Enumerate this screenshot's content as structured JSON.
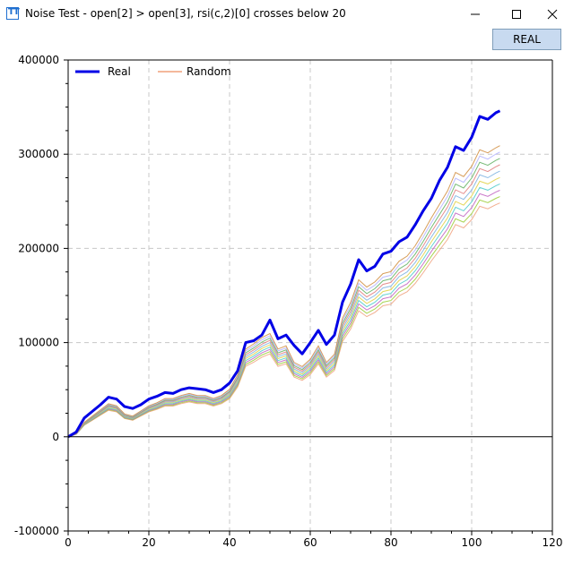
{
  "window": {
    "title": "Noise Test - open[2] > open[3], rsi(c,2)[0] crosses below 20",
    "icon_letters": "TT",
    "icon": "app-icon"
  },
  "toolbar": {
    "real_label": "REAL"
  },
  "chart_data": {
    "type": "line",
    "xlim": [
      0,
      120
    ],
    "ylim": [
      -100000,
      400000
    ],
    "x_ticks": [
      "0",
      "20",
      "40",
      "60",
      "80",
      "100",
      "120"
    ],
    "y_ticks": [
      "400000",
      "300000",
      "200000",
      "100000",
      "0",
      "-100000"
    ],
    "grid": true,
    "legend_position": "top-left",
    "legend": [
      "Real",
      "Random"
    ],
    "colors": {
      "real": "#0000e6",
      "random": "#f0a07c"
    },
    "series": [
      {
        "name": "Real",
        "x": [
          0,
          2,
          4,
          6,
          8,
          10,
          12,
          14,
          16,
          18,
          20,
          22,
          24,
          26,
          28,
          30,
          32,
          34,
          36,
          38,
          40,
          42,
          44,
          46,
          48,
          50,
          52,
          54,
          56,
          58,
          60,
          62,
          64,
          66,
          68,
          70,
          72,
          74,
          76,
          78,
          80,
          82,
          84,
          86,
          88,
          90,
          92,
          94,
          96,
          98,
          100,
          102,
          104,
          106,
          107
        ],
        "values": [
          0,
          5000,
          20000,
          27000,
          34000,
          42000,
          40000,
          32000,
          30000,
          34000,
          40000,
          43000,
          47000,
          46000,
          50000,
          52000,
          51000,
          50000,
          47000,
          50000,
          57000,
          70000,
          100000,
          102000,
          108000,
          124000,
          104000,
          108000,
          97000,
          88000,
          100000,
          113000,
          98000,
          108000,
          143000,
          162000,
          188000,
          176000,
          181000,
          194000,
          197000,
          207000,
          212000,
          225000,
          240000,
          253000,
          272000,
          286000,
          308000,
          304000,
          318000,
          340000,
          337000,
          344000,
          346000
        ]
      },
      {
        "name": "Random",
        "x": [
          0,
          2,
          4,
          6,
          8,
          10,
          12,
          14,
          16,
          18,
          20,
          22,
          24,
          26,
          28,
          30,
          32,
          34,
          36,
          38,
          40,
          42,
          44,
          46,
          48,
          50,
          52,
          54,
          56,
          58,
          60,
          62,
          64,
          66,
          68,
          70,
          72,
          74,
          76,
          78,
          80,
          82,
          84,
          86,
          88,
          90,
          92,
          94,
          96,
          98,
          100,
          102,
          104,
          106,
          107
        ],
        "values": [
          0,
          3000,
          14000,
          20000,
          26000,
          32000,
          30000,
          22000,
          20000,
          25000,
          30000,
          33000,
          37000,
          37000,
          40000,
          42000,
          40000,
          40000,
          37000,
          40000,
          46000,
          60000,
          85000,
          90000,
          96000,
          100000,
          85000,
          88000,
          72000,
          68000,
          75000,
          88000,
          72000,
          80000,
          115000,
          130000,
          152000,
          145000,
          150000,
          158000,
          160000,
          170000,
          175000,
          185000,
          198000,
          212000,
          225000,
          238000,
          256000,
          252000,
          262000,
          278000,
          275000,
          280000,
          282000
        ]
      }
    ]
  }
}
